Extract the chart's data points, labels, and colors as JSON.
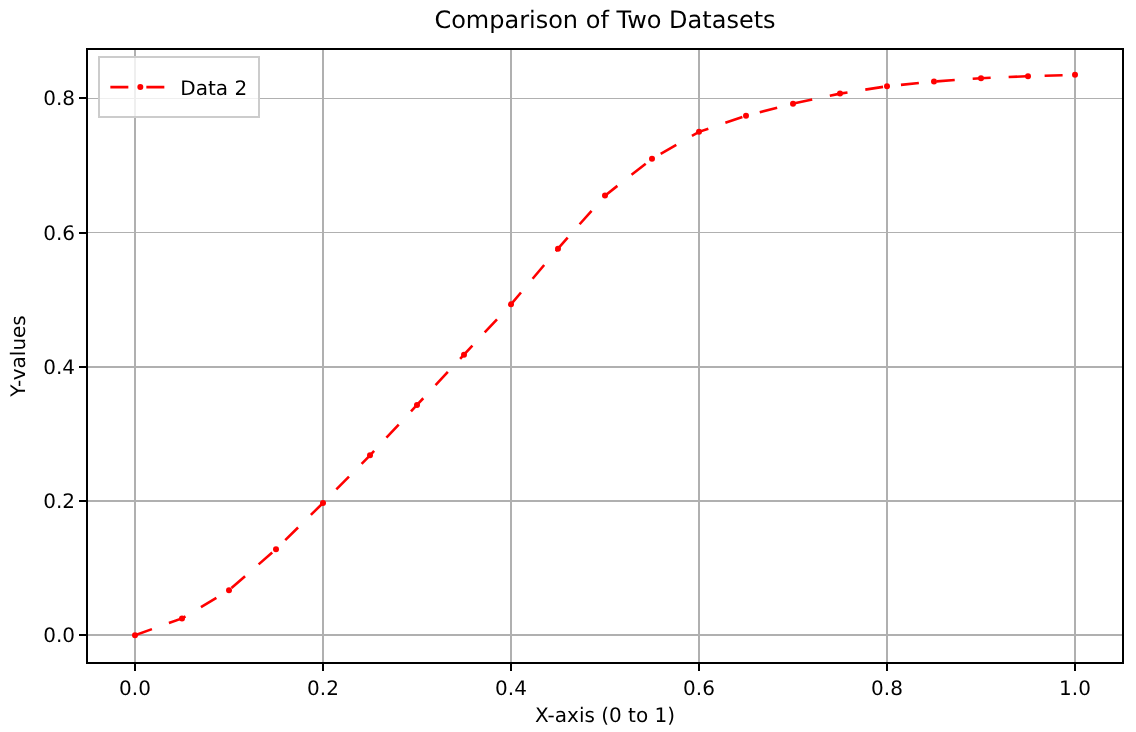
{
  "chart_data": {
    "type": "line",
    "title": "Comparison of Two Datasets",
    "xlabel": "X-axis (0 to 1)",
    "ylabel": "Y-values",
    "x": [
      0,
      0.05,
      0.1,
      0.15,
      0.2,
      0.25,
      0.3,
      0.35,
      0.4,
      0.45,
      0.5,
      0.55,
      0.6,
      0.65,
      0.7,
      0.75,
      0.8,
      0.85,
      0.9,
      0.95,
      1.0
    ],
    "series": [
      {
        "name": "Data 2",
        "color": "#ff0000",
        "values": [
          0,
          0.025,
          0.067,
          0.128,
          0.197,
          0.268,
          0.343,
          0.418,
          0.493,
          0.576,
          0.655,
          0.71,
          0.75,
          0.774,
          0.792,
          0.807,
          0.818,
          0.825,
          0.83,
          0.833,
          0.835
        ]
      }
    ],
    "xlim": [
      -0.05,
      1.05
    ],
    "xticks": [
      {
        "value": 0,
        "label": "0.0"
      },
      0.2,
      0.4,
      0.6,
      0.8,
      {
        "value": 1,
        "label": "1.0"
      }
    ],
    "ylim": [
      -0.04,
      0.872
    ],
    "yticks": [
      {
        "value": 0,
        "label": "0.0"
      },
      0.2,
      0.4,
      0.6,
      0.8
    ],
    "grid": true,
    "legend": "top left",
    "marker": "circle",
    "line_style": "dashed"
  }
}
